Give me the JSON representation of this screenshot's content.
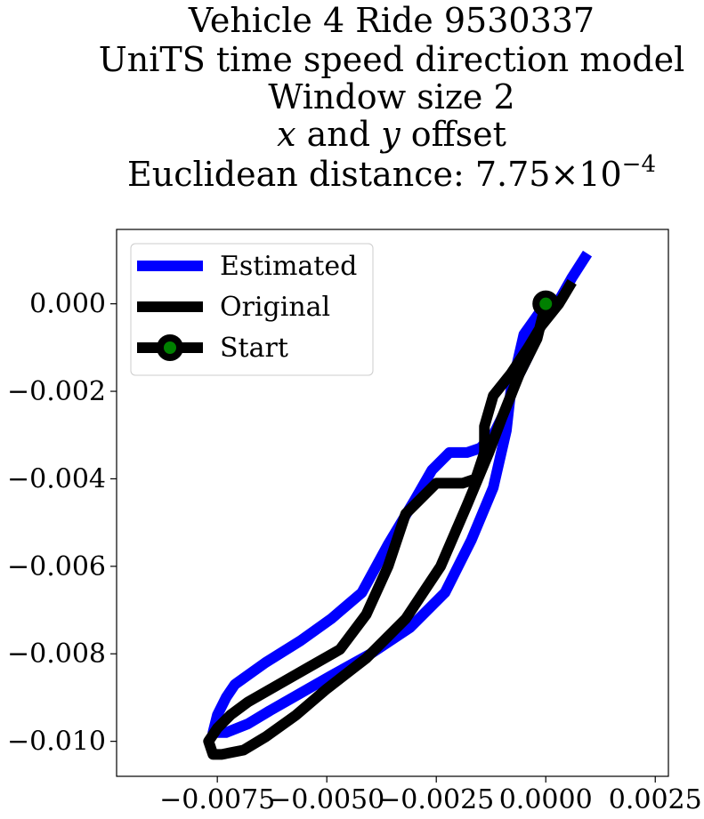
{
  "title": {
    "line1": "Vehicle 4 Ride 9530337",
    "line2": "UniTS time speed direction model",
    "line3": "Window size 2",
    "line4_x": "x",
    "line4_and": " and ",
    "line4_y": "y",
    "line4_offset": " offset",
    "line5_prefix": "Euclidean distance: 7.75",
    "line5_times": "×",
    "line5_base": "10",
    "line5_exp": "−4"
  },
  "chart_data": {
    "type": "line",
    "xlim": [
      -0.0098,
      0.0028
    ],
    "ylim": [
      -0.0108,
      0.0017
    ],
    "grid": false,
    "legend_position": "upper-left",
    "x_ticks": [
      -0.0075,
      -0.005,
      -0.0025,
      0.0,
      0.0025
    ],
    "x_tick_labels": [
      "−0.0075",
      "−0.0050",
      "−0.0025",
      "0.0000",
      "0.0025"
    ],
    "y_ticks": [
      0.0,
      -0.002,
      -0.004,
      -0.006,
      -0.008,
      -0.01
    ],
    "y_tick_labels": [
      "0.000",
      "−0.002",
      "−0.004",
      "−0.006",
      "−0.008",
      "−0.010"
    ],
    "series": [
      {
        "name": "Estimated",
        "color": "#0000ff",
        "x": [
          0.00095,
          0.0006,
          0.0002,
          -0.0002,
          -0.0004,
          -0.0007,
          -0.0009,
          -0.0012,
          -0.0015,
          -0.0018,
          -0.0022,
          -0.0026,
          -0.003,
          -0.0036,
          -0.0042,
          -0.0049,
          -0.0056,
          -0.0064,
          -0.0071,
          -0.0073,
          -0.0075,
          -0.0076,
          -0.0073,
          -0.0068,
          -0.0063,
          -0.0056,
          -0.0049,
          -0.004,
          -0.0031,
          -0.0023,
          -0.0017,
          -0.0012,
          -0.0009,
          -0.0008,
          -0.0005,
          0.0
        ],
        "y": [
          0.00115,
          0.0006,
          -0.0001,
          -0.0006,
          -0.0012,
          -0.0018,
          -0.0024,
          -0.003,
          -0.0033,
          -0.0034,
          -0.0034,
          -0.0038,
          -0.0045,
          -0.0055,
          -0.0066,
          -0.0072,
          -0.0077,
          -0.0082,
          -0.0087,
          -0.009,
          -0.0094,
          -0.0098,
          -0.0098,
          -0.0096,
          -0.0093,
          -0.0089,
          -0.0085,
          -0.008,
          -0.0074,
          -0.0066,
          -0.0054,
          -0.0042,
          -0.0029,
          -0.002,
          -0.0007,
          0.0
        ]
      },
      {
        "name": "Original",
        "color": "#000000",
        "x": [
          0.0006,
          0.0003,
          -0.0001,
          -0.0004,
          -0.0008,
          -0.0012,
          -0.0014,
          -0.0014,
          -0.0016,
          -0.0019,
          -0.0025,
          -0.0032,
          -0.0036,
          -0.0041,
          -0.0047,
          -0.0054,
          -0.0061,
          -0.0068,
          -0.0072,
          -0.0075,
          -0.0077,
          -0.0076,
          -0.0074,
          -0.0069,
          -0.0064,
          -0.0057,
          -0.005,
          -0.0041,
          -0.0032,
          -0.0024,
          -0.0018,
          -0.0013,
          -0.001,
          -0.0006,
          -0.0002,
          0.0
        ],
        "y": [
          0.0005,
          0.0,
          -0.0005,
          -0.001,
          -0.0016,
          -0.0021,
          -0.0028,
          -0.0034,
          -0.004,
          -0.0041,
          -0.0041,
          -0.0048,
          -0.006,
          -0.0071,
          -0.0079,
          -0.0083,
          -0.0087,
          -0.0091,
          -0.0094,
          -0.0097,
          -0.01,
          -0.0103,
          -0.0103,
          -0.0102,
          -0.0099,
          -0.0094,
          -0.0088,
          -0.0081,
          -0.0072,
          -0.006,
          -0.0046,
          -0.0034,
          -0.0026,
          -0.0016,
          -0.0008,
          0.0
        ]
      }
    ],
    "start_point": {
      "name": "Start",
      "x": 0.0,
      "y": 0.0,
      "color": "#008000",
      "edge_color": "#000000"
    }
  }
}
